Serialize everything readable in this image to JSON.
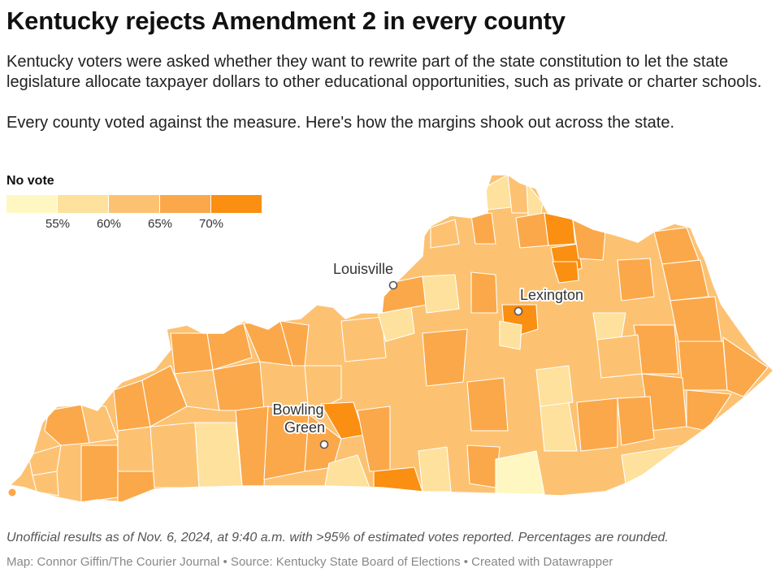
{
  "title": "Kentucky rejects Amendment 2 in every county",
  "description": {
    "paragraph1": "Kentucky voters were asked whether they want to rewrite part of the state constitution to let the state legislature allocate taxpayer dollars to other educational opportunities, such as private or charter schools.",
    "paragraph2": "Every county voted against the measure. Here's how the margins shook out across the state."
  },
  "legend": {
    "title": "No vote",
    "colors": [
      "#fff7c2",
      "#fde19c",
      "#fcc272",
      "#fba84a",
      "#fa8f12"
    ],
    "ticks": [
      "55%",
      "60%",
      "65%",
      "70%"
    ]
  },
  "map": {
    "cities": [
      {
        "name": "Louisville"
      },
      {
        "name": "Lexington"
      },
      {
        "name": "Bowling\nGreen",
        "line1": "Bowling",
        "line2": "Green"
      }
    ]
  },
  "notes": "Unofficial results as of Nov. 6, 2024, at 9:40 a.m. with >95% of estimated votes reported. Percentages are rounded.",
  "credits": "Map: Connor Giffin/The Courier Journal • Source: Kentucky State Board of Elections • Created with Datawrapper"
}
